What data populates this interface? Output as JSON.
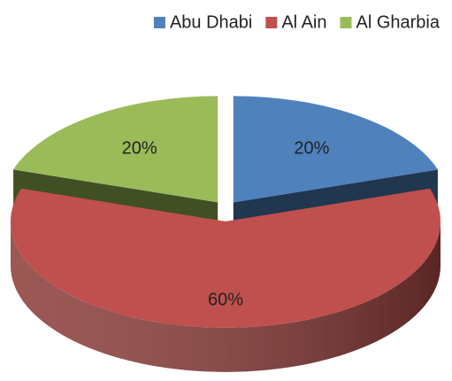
{
  "chart_data": {
    "type": "pie",
    "categories": [
      "Abu Dhabi",
      "Al Ain",
      "Al Gharbia"
    ],
    "values": [
      20,
      60,
      20
    ],
    "value_labels": [
      "20%",
      "60%",
      "20%"
    ],
    "colors": [
      "#4f81bd",
      "#c0504d",
      "#9bbb59"
    ],
    "legend": "top-right"
  }
}
